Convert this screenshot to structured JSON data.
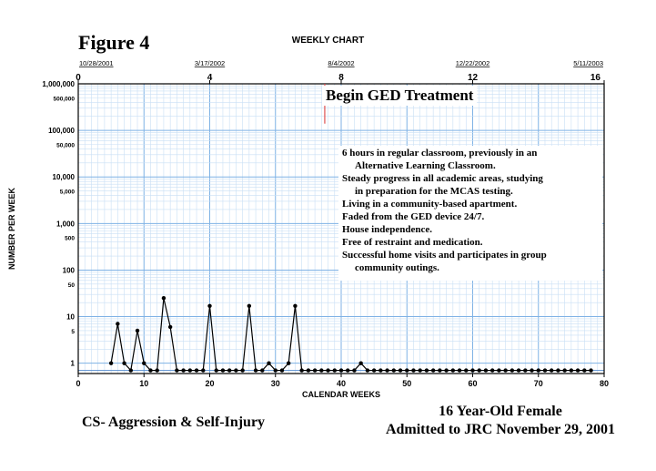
{
  "figure_label": "Figure 4",
  "footer": {
    "left": "CS- Aggression & Self-Injury",
    "right_line1": "16 Year-Old Female",
    "right_line2": "Admitted to JRC November 29, 2001"
  },
  "chart_data": {
    "type": "line",
    "title": "WEEKLY CHART",
    "xlabel": "CALENDAR WEEKS",
    "ylabel": "NUMBER PER WEEK",
    "y_scale": "log",
    "xlim": [
      0,
      80
    ],
    "x_ticks": [
      0,
      10,
      20,
      30,
      40,
      50,
      60,
      70,
      80
    ],
    "y_ticks": [
      {
        "value": 1000000,
        "label": "1,000,000"
      },
      {
        "value": 500000,
        "label": "500,000"
      },
      {
        "value": 100000,
        "label": "100,000"
      },
      {
        "value": 50000,
        "label": "50,000"
      },
      {
        "value": 10000,
        "label": "10,000"
      },
      {
        "value": 5000,
        "label": "5,000"
      },
      {
        "value": 1000,
        "label": "1,000"
      },
      {
        "value": 500,
        "label": "500"
      },
      {
        "value": 100,
        "label": "100"
      },
      {
        "value": 50,
        "label": "50"
      },
      {
        "value": 10,
        "label": "10"
      },
      {
        "value": 5,
        "label": "5"
      },
      {
        "value": 1,
        "label": "1"
      }
    ],
    "top_axis": {
      "ticks": [
        {
          "week": 0,
          "label": "0",
          "date": "10/28/2001"
        },
        {
          "week": 20,
          "label": "4",
          "date": "3/17/2002"
        },
        {
          "week": 40,
          "label": "8",
          "date": "8/4/2002"
        },
        {
          "week": 60,
          "label": "12",
          "date": "12/22/2002"
        },
        {
          "week": 80,
          "label": "16",
          "date": "5/11/2003"
        }
      ]
    },
    "zero_line_value": 0.7,
    "phase_line": {
      "week": 37.5,
      "label": "Begin GED Treatment",
      "color": "#e05050"
    },
    "annotation_lines": [
      "6 hours in regular classroom, previously in an",
      "Alternative Learning Classroom.",
      "Steady progress in all academic areas, studying",
      "in preparation for the MCAS testing.",
      "Living in a community-based apartment.",
      "Faded from the GED device 24/7.",
      "House independence.",
      "Free of restraint and medication.",
      "Successful home visits and participates in group",
      "community outings."
    ],
    "annotation_indent": [
      false,
      true,
      false,
      true,
      false,
      false,
      false,
      false,
      false,
      true
    ],
    "series": [
      {
        "x": [
          5,
          6,
          7,
          8,
          9,
          10,
          11,
          12,
          13,
          14,
          15,
          16,
          17,
          18,
          19,
          20,
          21,
          22,
          23,
          24,
          25,
          26,
          27,
          28,
          29,
          30,
          31,
          32,
          33,
          34,
          35,
          36,
          37,
          38,
          39,
          40,
          41,
          42,
          43,
          44,
          45,
          46,
          47,
          48,
          49,
          50,
          51,
          52,
          53,
          54,
          55,
          56,
          57,
          58,
          59,
          60,
          61,
          62,
          63,
          64,
          65,
          66,
          67,
          68,
          69,
          70,
          71,
          72,
          73,
          74,
          75,
          76,
          77,
          78
        ],
        "values": [
          1,
          7,
          1,
          0.7,
          5,
          1,
          0.7,
          0.7,
          25,
          6,
          0.7,
          0.7,
          0.7,
          0.7,
          0.7,
          17,
          0.7,
          0.7,
          0.7,
          0.7,
          0.7,
          17,
          0.7,
          0.7,
          1,
          0.7,
          0.7,
          1,
          17,
          0.7,
          0.7,
          0.7,
          0.7,
          0.7,
          0.7,
          0.7,
          0.7,
          0.7,
          1,
          0.7,
          0.7,
          0.7,
          0.7,
          0.7,
          0.7,
          0.7,
          0.7,
          0.7,
          0.7,
          0.7,
          0.7,
          0.7,
          0.7,
          0.7,
          0.7,
          0.7,
          0.7,
          0.7,
          0.7,
          0.7,
          0.7,
          0.7,
          0.7,
          0.7,
          0.7,
          0.7,
          0.7,
          0.7,
          0.7,
          0.7,
          0.7,
          0.7,
          0.7,
          0.7
        ]
      }
    ],
    "colors": {
      "grid": "#7fb2e5",
      "grid_minor": "#c9dff5",
      "axis": "#000000",
      "line": "#000000",
      "phase": "#e05050"
    }
  }
}
